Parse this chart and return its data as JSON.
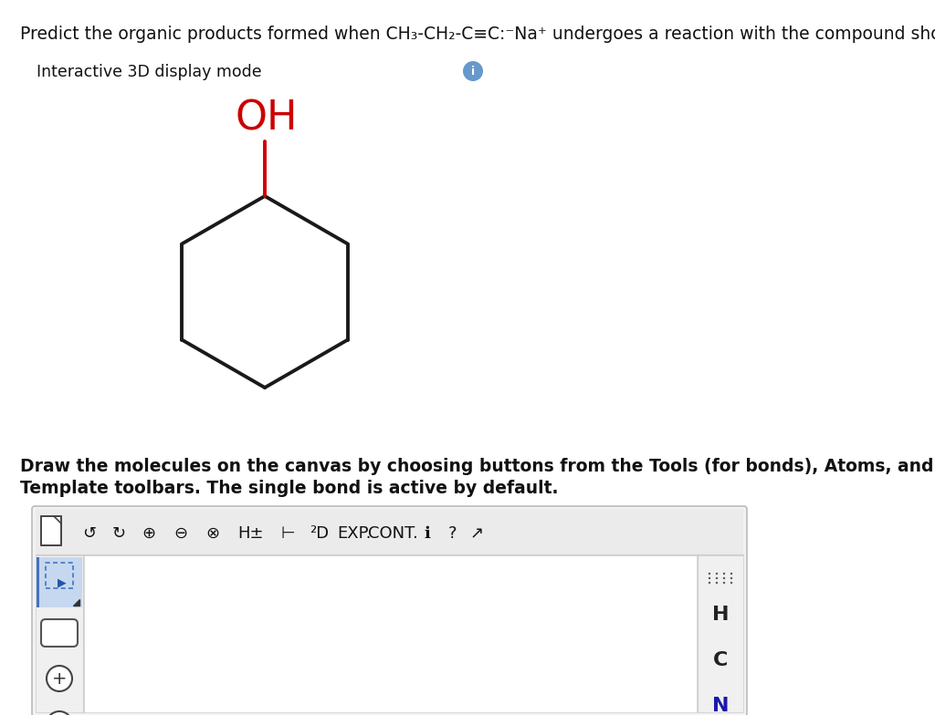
{
  "bg_color": "#ffffff",
  "title_line": "Predict the organic products formed when CH₃-CH₂-C≡C:⁻Na⁺ undergoes a reaction with the compound shown below.",
  "interactive_label": "Interactive 3D display mode",
  "draw_instruction_line1": "Draw the molecules on the canvas by choosing buttons from the Tools (for bonds), Atoms, and Advanced",
  "draw_instruction_line2": "Template toolbars. The single bond is active by default.",
  "oh_color": "#cc0000",
  "bond_color": "#1a1a1a",
  "right_labels": [
    "H",
    "C",
    "N"
  ],
  "right_label_colors": [
    "#222222",
    "#222222",
    "#1a1aaa"
  ]
}
